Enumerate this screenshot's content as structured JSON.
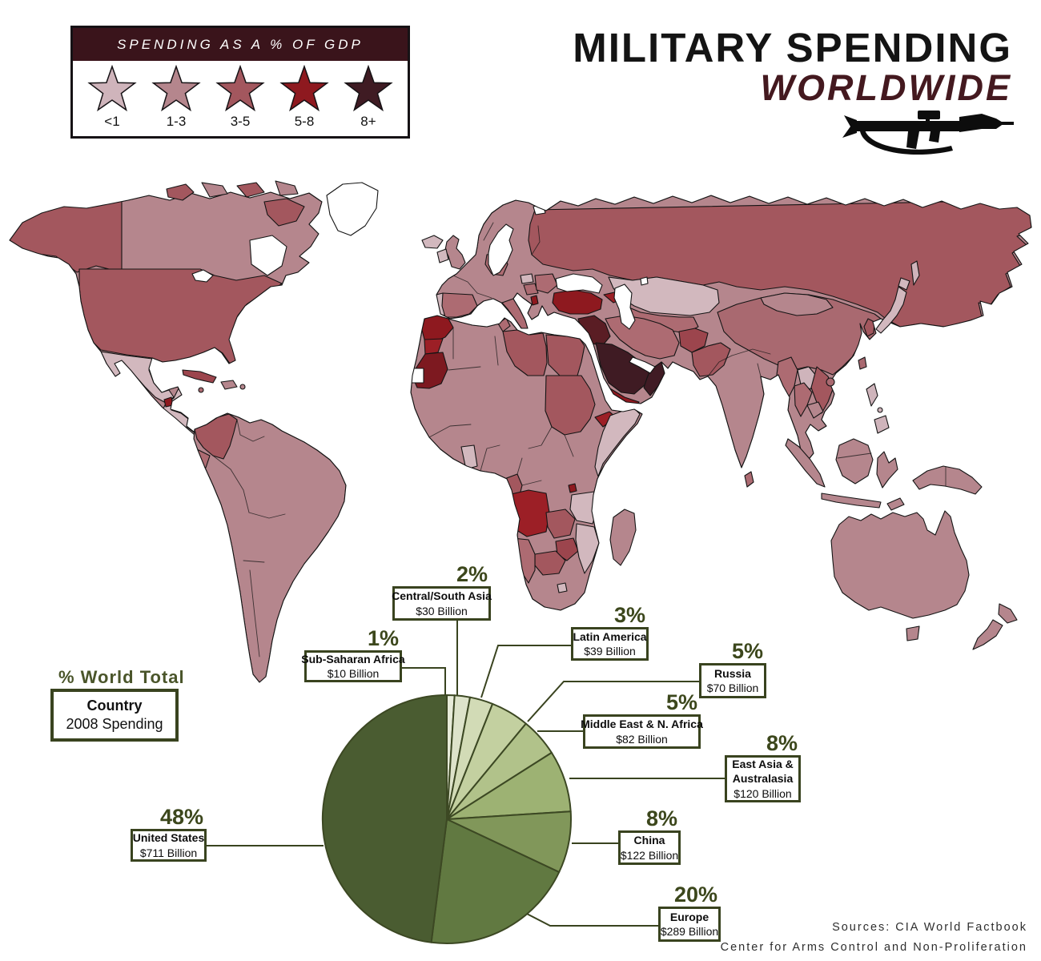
{
  "title": {
    "main": "MILITARY SPENDING",
    "sub": "WORLDWIDE",
    "weapon_icon": "rpg-launcher-icon"
  },
  "legend": {
    "title": "SPENDING AS A % OF GDP",
    "icon": "star-icon",
    "header_bg": "#3a141b",
    "categories": [
      {
        "label": "<1",
        "color": "#cfb4bb"
      },
      {
        "label": "1-3",
        "color": "#b5868d"
      },
      {
        "label": "3-5",
        "color": "#a3575e"
      },
      {
        "label": "5-8",
        "color": "#8e191f"
      },
      {
        "label": "8+",
        "color": "#3f1b23"
      }
    ]
  },
  "key_box": {
    "heading": "% World Total",
    "line1": "Country",
    "line2": "2008 Spending"
  },
  "pie": {
    "slices": [
      {
        "name": "Sub-Saharan Africa",
        "pct": "1%",
        "amount": "$10 Billion",
        "value": 1,
        "color": "#e7ebd9"
      },
      {
        "name": "Central/South Asia",
        "pct": "2%",
        "amount": "$30 Billion",
        "value": 2,
        "color": "#dde3ca"
      },
      {
        "name": "Latin America",
        "pct": "3%",
        "amount": "$39 Billion",
        "value": 3,
        "color": "#d2dbb6"
      },
      {
        "name": "Russia",
        "pct": "5%",
        "amount": "$70 Billion",
        "value": 5,
        "color": "#c3d0a0"
      },
      {
        "name": "Middle East & N. Africa",
        "pct": "5%",
        "amount": "$82 Billion",
        "value": 5,
        "color": "#b1c28a"
      },
      {
        "name": "East Asia & Australasia",
        "pct": "8%",
        "amount": "$120 Billion",
        "value": 8,
        "color": "#9db273"
      },
      {
        "name": "China",
        "pct": "8%",
        "amount": "$122 Billion",
        "value": 8,
        "color": "#81975a"
      },
      {
        "name": "Europe",
        "pct": "20%",
        "amount": "$289 Billion",
        "value": 20,
        "color": "#617941"
      },
      {
        "name": "United States",
        "pct": "48%",
        "amount": "$711 Billion",
        "value": 48,
        "color": "#4a5c31"
      }
    ]
  },
  "map": {
    "type": "choropleth-world-map",
    "metric": "Military spending as a % of GDP",
    "no_data_color": "#ffffff",
    "notable_regions": [
      {
        "name": "United States",
        "category": "3-5"
      },
      {
        "name": "Canada",
        "category": "1-3"
      },
      {
        "name": "Mexico",
        "category": "<1"
      },
      {
        "name": "Greenland",
        "category": "no data"
      },
      {
        "name": "Colombia",
        "category": "3-5"
      },
      {
        "name": "Brazil",
        "category": "1-3"
      },
      {
        "name": "Russia",
        "category": "3-5"
      },
      {
        "name": "Kazakhstan",
        "category": "<1"
      },
      {
        "name": "Turkey",
        "category": "5-8"
      },
      {
        "name": "Saudi Arabia",
        "category": "8+"
      },
      {
        "name": "Oman",
        "category": "8+"
      },
      {
        "name": "Iraq",
        "category": "8+"
      },
      {
        "name": "Yemen",
        "category": "5-8"
      },
      {
        "name": "Morocco",
        "category": "5-8"
      },
      {
        "name": "Mauritania",
        "category": "5-8"
      },
      {
        "name": "Angola",
        "category": "5-8"
      },
      {
        "name": "Eritrea",
        "category": "5-8"
      },
      {
        "name": "China",
        "category": "1-3"
      },
      {
        "name": "India",
        "category": "1-3"
      },
      {
        "name": "Japan",
        "category": "<1"
      },
      {
        "name": "Australia",
        "category": "1-3"
      },
      {
        "name": "Tanzania",
        "category": "<1"
      },
      {
        "name": "Somalia",
        "category": "<1"
      }
    ]
  },
  "sources": {
    "line1": "Sources: CIA World Factbook",
    "line2": "Center for Arms Control and Non-Proliferation"
  },
  "chart_data": [
    {
      "type": "pie",
      "title": "% World Total — Country — 2008 Spending",
      "categories": [
        "Sub-Saharan Africa",
        "Central/South Asia",
        "Latin America",
        "Russia",
        "Middle East & N. Africa",
        "East Asia & Australasia",
        "China",
        "Europe",
        "United States"
      ],
      "values": [
        1,
        2,
        3,
        5,
        5,
        8,
        8,
        20,
        48
      ],
      "data_labels": [
        "$10 Billion",
        "$30 Billion",
        "$39 Billion",
        "$70 Billion",
        "$82 Billion",
        "$120 Billion",
        "$122 Billion",
        "$289 Billion",
        "$711 Billion"
      ],
      "colors": [
        "#e7ebd9",
        "#dde3ca",
        "#d2dbb6",
        "#c3d0a0",
        "#b1c28a",
        "#9db273",
        "#81975a",
        "#617941",
        "#4a5c31"
      ],
      "start_angle": "12 o'clock",
      "direction": "clockwise",
      "legend_position": "callout-boxes"
    },
    {
      "type": "table",
      "title": "Spending as a % of GDP (map legend)",
      "categories": [
        "<1",
        "1-3",
        "3-5",
        "5-8",
        "8+"
      ],
      "values": [
        1,
        2,
        3,
        4,
        5
      ],
      "colors": [
        "#cfb4bb",
        "#b5868d",
        "#a3575e",
        "#8e191f",
        "#3f1b23"
      ]
    }
  ]
}
